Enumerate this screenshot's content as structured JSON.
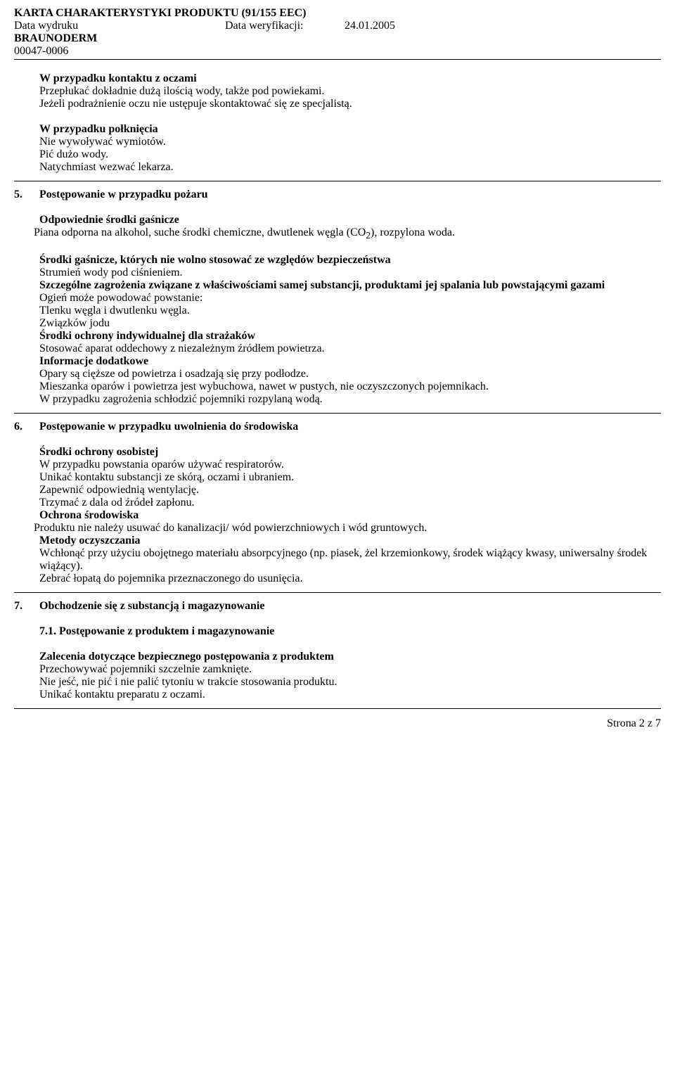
{
  "header": {
    "title": "KARTA CHARAKTERYSTYKI PRODUKTU (91/155 EEC)",
    "print_label": "Data wydruku",
    "verify_label": "Data weryfikacji:",
    "verify_date": "24.01.2005",
    "product": "BRAUNODERM",
    "code": "00047-0006"
  },
  "s_eyes": {
    "h": "W przypadku kontaktu z oczami",
    "l1": "Przepłukać dokładnie dużą ilością wody, także pod powiekami.",
    "l2": "Jeżeli podrażnienie oczu nie ustępuje skontaktować się ze specjalistą."
  },
  "s_swallow": {
    "h": "W przypadku połknięcia",
    "l1": "Nie wywoływać wymiotów.",
    "l2": "Pić dużo wody.",
    "l3": "Natychmiast wezwać lekarza."
  },
  "s5": {
    "num": "5.",
    "title": "Postępowanie w przypadku pożaru",
    "h1": "Odpowiednie środki gaśnicze",
    "p1a": "Piana odporna na alkohol, suche środki chemiczne, dwutlenek węgla (CO",
    "p1sub": "2",
    "p1b": "), rozpylona woda.",
    "h2": "Środki gaśnicze, których nie wolno stosować ze względów bezpieczeństwa",
    "p2": "Strumień wody pod ciśnieniem.",
    "h3a": "Szczególne zagrożenia związane z właściwościami samej substancji, produktami jej spalania lub powstającymi gazami",
    "p3a": "Ogień może powodować powstanie:",
    "p3b": "Tlenku węgla i dwutlenku węgla.",
    "p3c": "Związków jodu",
    "h4": "Środki ochrony indywidualnej dla strażaków",
    "p4": "Stosować aparat oddechowy z niezależnym źródłem powietrza.",
    "h5": "Informacje dodatkowe",
    "p5a": "Opary są cięższe od powietrza i osadzają się przy podłodze.",
    "p5b": "Mieszanka oparów i powietrza jest wybuchowa, nawet w pustych, nie oczyszczonych pojemnikach.",
    "p5c": "W przypadku zagrożenia schłodzić pojemniki rozpylaną wodą."
  },
  "s6": {
    "num": "6.",
    "title": "Postępowanie w przypadku uwolnienia do środowiska",
    "h1": "Środki ochrony osobistej",
    "p1a": "W przypadku powstania oparów używać respiratorów.",
    "p1b": "Unikać kontaktu substancji ze skórą, oczami i ubraniem.",
    "p1c": "Zapewnić odpowiednią wentylację.",
    "p1d": "Trzymać z dala od źródeł zapłonu.",
    "h2": "Ochrona środowiska",
    "p2": "Produktu nie należy usuwać do kanalizacji/ wód powierzchniowych i wód gruntowych.",
    "h3": "Metody oczyszczania",
    "p3a": "Wchłonąć przy użyciu obojętnego materiału absorpcyjnego (np. piasek, żel krzemionkowy, środek wiążący kwasy, uniwersalny środek wiążący).",
    "p3b": "Zebrać łopatą do pojemnika przeznaczonego do usunięcia."
  },
  "s7": {
    "num": "7.",
    "title": "Obchodzenie się z substancją i magazynowanie",
    "sub_num": "7.1.",
    "sub_title": "Postępowanie z produktem i magazynowanie",
    "h1": "Zalecenia dotyczące bezpiecznego postępowania z produktem",
    "p1a": "Przechowywać pojemniki szczelnie zamknięte.",
    "p1b": "Nie jeść, nie pić i nie palić tytoniu w trakcie stosowania produktu.",
    "p1c": "Unikać kontaktu preparatu z oczami."
  },
  "footer": {
    "text": "Strona 2 z 7"
  }
}
